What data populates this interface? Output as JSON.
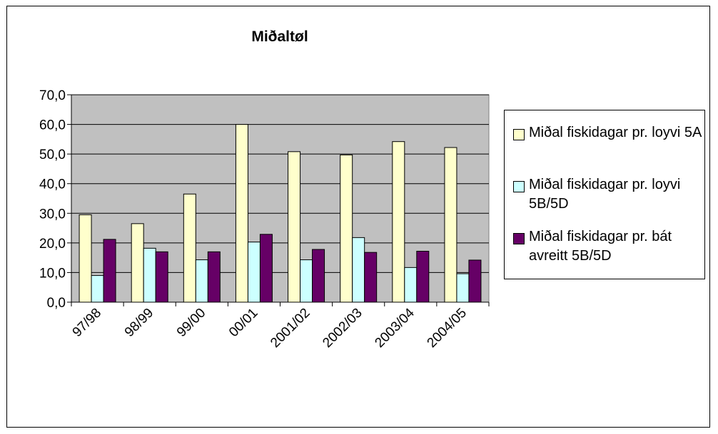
{
  "chart_data": {
    "type": "bar",
    "title": "Miðaltøl",
    "categories": [
      "97/98",
      "98/99",
      "99/00",
      "00/01",
      "2001/02",
      "2002/03",
      "2003/04",
      "2004/05"
    ],
    "series": [
      {
        "name": "Miðal fiskidagar pr. loyvi 5A",
        "color": "#ffffcc",
        "values": [
          29.5,
          26.5,
          36.5,
          60.0,
          50.8,
          49.7,
          54.2,
          52.2
        ]
      },
      {
        "name": "Miðal fiskidagar pr. loyvi 5B/5D",
        "color": "#ccffff",
        "values": [
          9.0,
          18.2,
          14.3,
          20.3,
          14.3,
          21.8,
          11.7,
          9.6
        ]
      },
      {
        "name": "Miðal fiskidagar pr. bát avreitt 5B/5D",
        "color": "#660066",
        "values": [
          21.2,
          17.0,
          17.0,
          22.9,
          17.8,
          16.8,
          17.2,
          14.2
        ]
      }
    ],
    "ylim": [
      0,
      70
    ],
    "yticks": [
      "0,0",
      "10,0",
      "20,0",
      "30,0",
      "40,0",
      "50,0",
      "60,0",
      "70,0"
    ],
    "ytick_values": [
      0,
      10,
      20,
      30,
      40,
      50,
      60,
      70
    ],
    "plot_background": "#c0c0c0",
    "grid": true,
    "legend_position": "right"
  }
}
